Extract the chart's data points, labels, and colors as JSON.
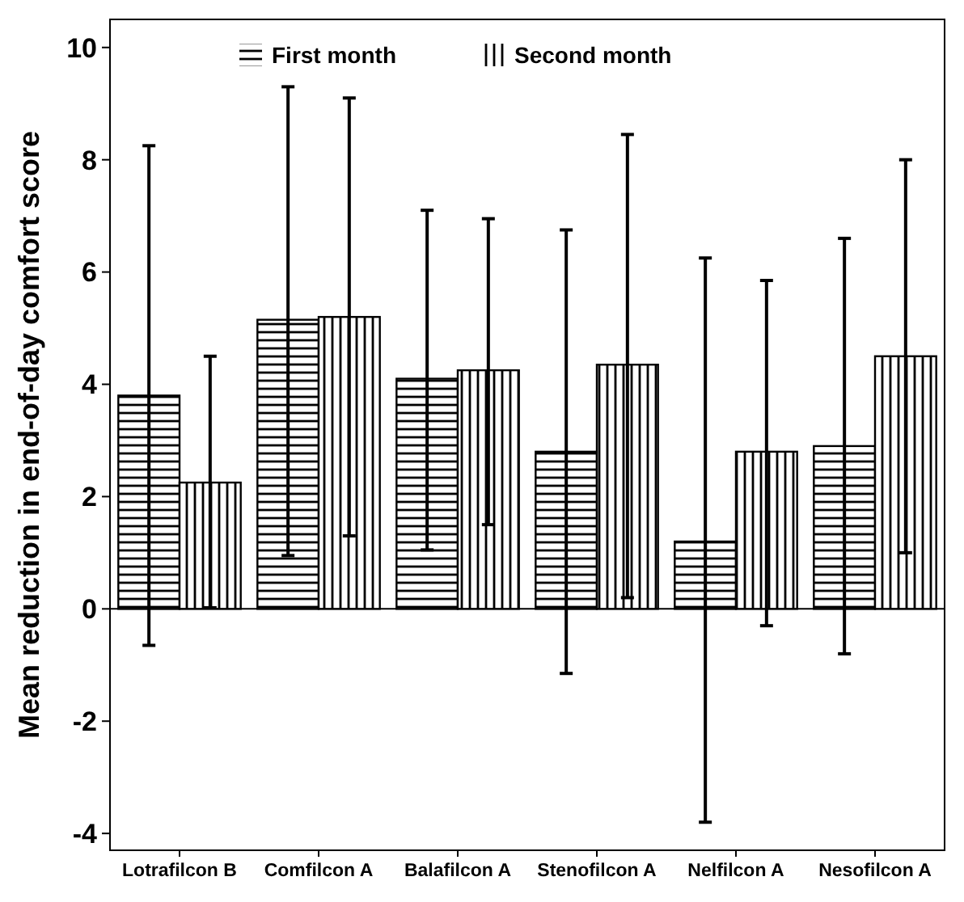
{
  "chart_data": {
    "type": "bar",
    "ylabel": "Mean reduction in end-of-day comfort score",
    "categories": [
      "Lotrafilcon B",
      "Comfilcon A",
      "Balafilcon A",
      "Stenofilcon A",
      "Nelfilcon A",
      "Nesofilcon A"
    ],
    "series": [
      {
        "name": "First month",
        "color": "#000000",
        "values": [
          3.8,
          5.15,
          4.1,
          2.8,
          1.2,
          2.9
        ],
        "errors": [
          [
            -0.65,
            8.25
          ],
          [
            0.95,
            9.3
          ],
          [
            1.05,
            7.1
          ],
          [
            -1.15,
            6.75
          ],
          [
            -3.8,
            6.25
          ],
          [
            -0.8,
            6.6
          ]
        ]
      },
      {
        "name": "Second month",
        "color": "#000000",
        "values": [
          2.25,
          5.2,
          4.25,
          4.35,
          2.8,
          4.5
        ],
        "errors": [
          [
            0.02,
            4.5
          ],
          [
            1.3,
            9.1
          ],
          [
            1.5,
            6.95
          ],
          [
            0.2,
            8.45
          ],
          [
            -0.3,
            5.85
          ],
          [
            1.0,
            8.0
          ]
        ]
      }
    ],
    "ylim": [
      -4.3,
      10.5
    ],
    "yticks": [
      -4,
      -2,
      0,
      2,
      4,
      6,
      8,
      10
    ],
    "legend": "top",
    "ref_lines": [
      {
        "axis": "y",
        "value": 0
      }
    ]
  }
}
